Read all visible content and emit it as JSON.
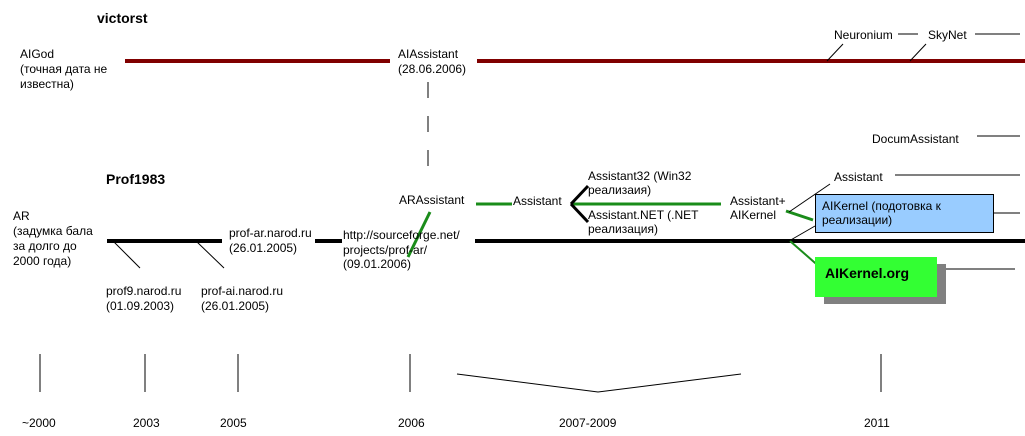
{
  "title_victorst": "victorst",
  "title_prof": "Prof1983",
  "labels": {
    "aigod_1": "AIGod",
    "aigod_2": "(точная дата не",
    "aigod_3": "известна)",
    "aiassistant_1": "AIAssistant",
    "aiassistant_2": "(28.06.2006)",
    "neuronium": "Neuronium",
    "skynet": "SkyNet",
    "documassistant": "DocumAssistant",
    "assistant_top": "Assistant",
    "ar_1": "AR",
    "ar_2": "(задумка  бала",
    "ar_3": "за долго до",
    "ar_4": "2000 года)",
    "profar_1": "prof-ar.narod.ru",
    "profar_2": "(26.01.2005)",
    "sf_1": "http://sourceforge.net/",
    "sf_2": "projects/prof-ar/",
    "sf_3": "(09.01.2006)",
    "prof9_1": "prof9.narod.ru",
    "prof9_2": "(01.09.2003)",
    "profai_1": "prof-ai.narod.ru",
    "profai_2": "(26.01.2005)",
    "arassistant": "ARAssistant",
    "assistant_mid": "Assistant",
    "a32_1": "Assistant32 (Win32",
    "a32_2": "реализаия)",
    "anet_1": "Assistant.NET (.NET",
    "anet_2": "реализация)",
    "aplus_1": "Assistant+",
    "aplus_2": "AIKernel",
    "aikernel_1": "AIKernel (подотовка к",
    "aikernel_2": "реализации)",
    "aikernel_org": "AIKernel.org"
  },
  "years": {
    "y2000": "~2000",
    "y2003": "2003",
    "y2005": "2005",
    "y2006": "2006",
    "y2007": "2007-2009",
    "y2011": "2011"
  },
  "colors": {
    "victorst_line": "#800000",
    "prof_line": "#000000",
    "green_line": "#1a8c1a",
    "blue_box": "#99ccff",
    "green_box": "#33ff33"
  }
}
